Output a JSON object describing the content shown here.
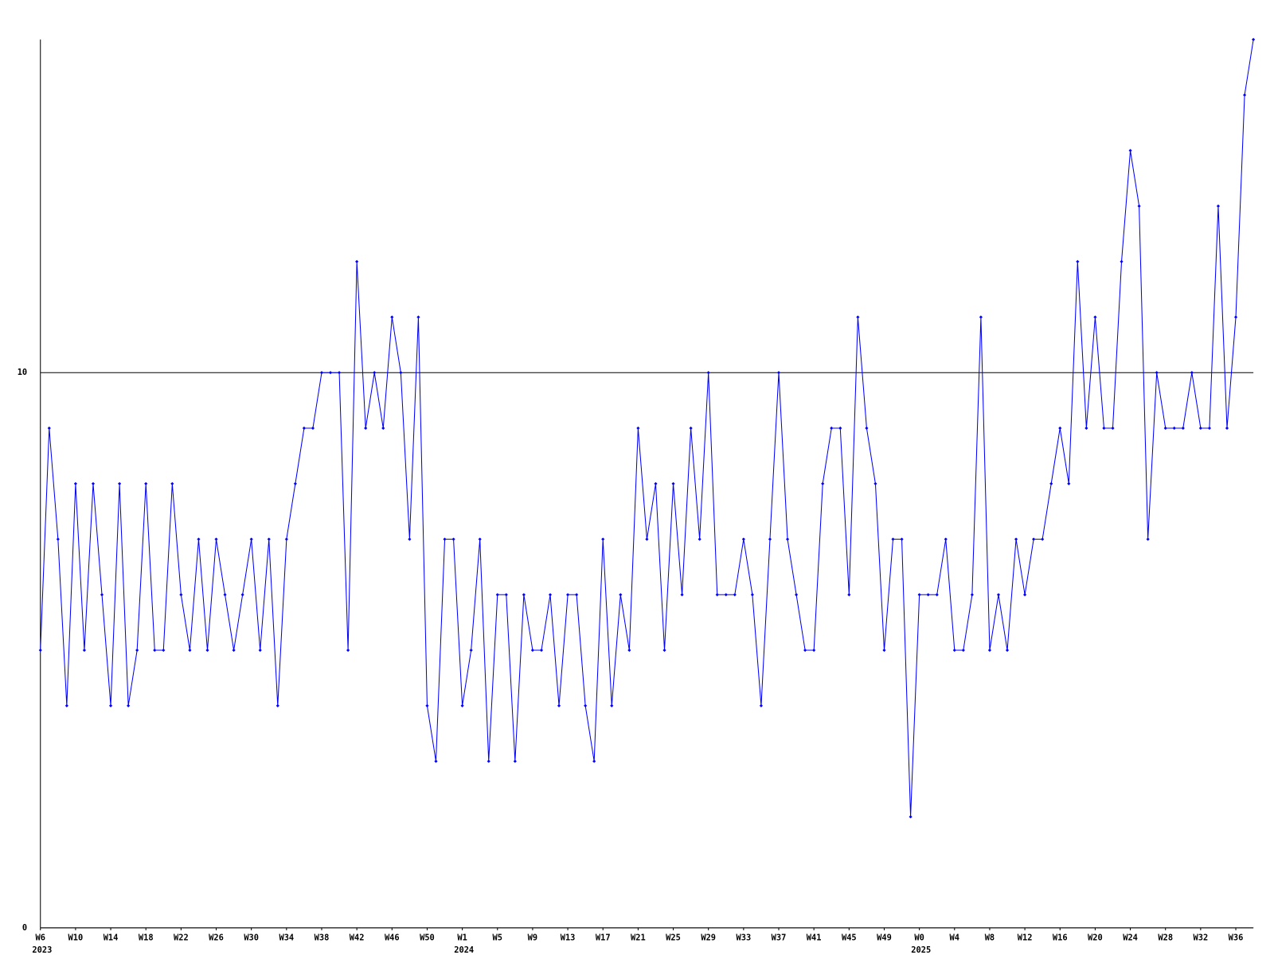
{
  "chart_data": {
    "type": "line",
    "categories": [
      "W6",
      null,
      null,
      null,
      "W10",
      null,
      null,
      null,
      "W14",
      null,
      null,
      null,
      "W18",
      null,
      null,
      null,
      "W22",
      null,
      null,
      null,
      "W26",
      null,
      null,
      null,
      "W30",
      null,
      null,
      null,
      "W34",
      null,
      null,
      null,
      "W38",
      null,
      null,
      null,
      "W42",
      null,
      null,
      null,
      "W46",
      null,
      null,
      null,
      "W50",
      null,
      null,
      null,
      "W1",
      null,
      null,
      null,
      "W5",
      null,
      null,
      null,
      "W9",
      null,
      null,
      null,
      "W13",
      null,
      null,
      null,
      "W17",
      null,
      null,
      null,
      "W21",
      null,
      null,
      null,
      "W25",
      null,
      null,
      null,
      "W29",
      null,
      null,
      null,
      "W33",
      null,
      null,
      null,
      "W37",
      null,
      null,
      null,
      "W41",
      null,
      null,
      null,
      "W45",
      null,
      null,
      null,
      "W49",
      null,
      null,
      null,
      "W0",
      null,
      null,
      null,
      "W4",
      null,
      null,
      null,
      "W8",
      null,
      null,
      null,
      "W12",
      null,
      null,
      null,
      "W16",
      null,
      null,
      null,
      "W20",
      null,
      null,
      null,
      "W24",
      null,
      null,
      null,
      "W28",
      null,
      null,
      null,
      "W32",
      null,
      null,
      null,
      "W36",
      null,
      null
    ],
    "year_labels": [
      "2023",
      null,
      null,
      null,
      null,
      null,
      null,
      null,
      null,
      null,
      null,
      null,
      null,
      null,
      null,
      null,
      null,
      null,
      null,
      null,
      null,
      null,
      null,
      null,
      null,
      null,
      null,
      null,
      null,
      null,
      null,
      null,
      null,
      null,
      null,
      null,
      null,
      null,
      null,
      null,
      null,
      null,
      null,
      null,
      null,
      null,
      null,
      null,
      "2024",
      null,
      null,
      null,
      null,
      null,
      null,
      null,
      null,
      null,
      null,
      null,
      null,
      null,
      null,
      null,
      null,
      null,
      null,
      null,
      null,
      null,
      null,
      null,
      null,
      null,
      null,
      null,
      null,
      null,
      null,
      null,
      null,
      null,
      null,
      null,
      null,
      null,
      null,
      null,
      null,
      null,
      null,
      null,
      null,
      null,
      null,
      null,
      null,
      null,
      null,
      null,
      "2025",
      null,
      null,
      null,
      null,
      null,
      null,
      null,
      null,
      null,
      null,
      null,
      null,
      null,
      null,
      null,
      null,
      null,
      null,
      null,
      null,
      null,
      null,
      null,
      null,
      null,
      null,
      null,
      null,
      null,
      null,
      null,
      null,
      null,
      null,
      null,
      null,
      null
    ],
    "series": [
      {
        "color": "#0000ff",
        "values": [
          5,
          9,
          7,
          4,
          8,
          5,
          8,
          6,
          4,
          8,
          4,
          5,
          8,
          5,
          5,
          8,
          6,
          5,
          7,
          5,
          7,
          6,
          5,
          6,
          7,
          5,
          7,
          4,
          7,
          8,
          9,
          9,
          10,
          10,
          10,
          5,
          12,
          9,
          10,
          9,
          11,
          10,
          7,
          11,
          4,
          3,
          7,
          7,
          4,
          5,
          7,
          3,
          6,
          6,
          3,
          6,
          5,
          5,
          6,
          4,
          6,
          6,
          4,
          3,
          7,
          4,
          6,
          5,
          9,
          7,
          8,
          5,
          8,
          6,
          9,
          7,
          10,
          6,
          6,
          6,
          7,
          6,
          4,
          7,
          10,
          7,
          6,
          5,
          5,
          8,
          9,
          9,
          6,
          11,
          9,
          8,
          5,
          7,
          7,
          2,
          6,
          6,
          6,
          7,
          5,
          5,
          6,
          11,
          5,
          6,
          5,
          7,
          6,
          7,
          7,
          8,
          9,
          8,
          12,
          9,
          11,
          9,
          9,
          12,
          14,
          13,
          7,
          10,
          9,
          9,
          9,
          10,
          9,
          9,
          13,
          9,
          11,
          15,
          16
        ]
      }
    ],
    "ylim": [
      0,
      16
    ],
    "yticks": [
      0,
      10
    ],
    "grid": true
  }
}
